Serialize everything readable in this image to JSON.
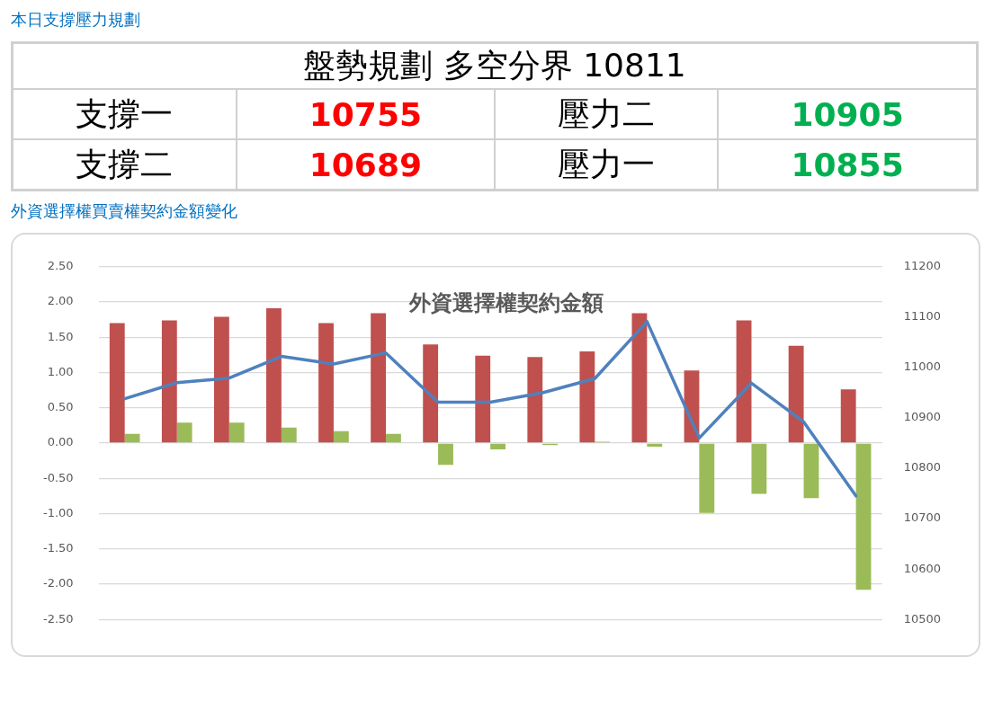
{
  "chart_data": [
    {
      "type": "other",
      "title": "本日支撐壓力規劃",
      "annotations": [
        "盤勢規劃 多空分界 10811",
        "支撐一",
        "10755",
        "壓力二",
        "10905",
        "支撐二",
        "10689",
        "壓力一",
        "10855"
      ],
      "colors": [
        "#000000",
        "#000000",
        "#ff0000",
        "#000000",
        "#00b050",
        "#000000",
        "#ff0000",
        "#000000",
        "#00b050"
      ]
    },
    {
      "type": "bar",
      "title": "外資選擇權買賣權契約金額變化",
      "subtitle": "外資選擇權契約金額",
      "categories": [
        null,
        null,
        null,
        null,
        null,
        null,
        null,
        null,
        null,
        null,
        null,
        null,
        null,
        null,
        null
      ],
      "series": [
        {
          "type": "bar",
          "color": "#c0504d",
          "values": [
            1.7,
            1.74,
            1.79,
            1.91,
            1.7,
            1.84,
            1.4,
            1.24,
            1.22,
            1.3,
            1.84,
            1.03,
            1.74,
            1.38,
            0.76
          ]
        },
        {
          "type": "bar",
          "color": "#9bbb59",
          "values": [
            0.13,
            0.29,
            0.29,
            0.22,
            0.17,
            0.13,
            -0.31,
            -0.09,
            -0.03,
            0.02,
            -0.05,
            -0.99,
            -0.72,
            -0.78,
            -2.08
          ]
        },
        {
          "type": "line",
          "axis": "y2",
          "color": "#4f81bd",
          "values": [
            10938,
            10970,
            10979,
            11022,
            11007,
            11029,
            10931,
            10931,
            10950,
            10978,
            11091,
            10860,
            10969,
            10892,
            10745
          ]
        }
      ],
      "ylim": [
        -2.5,
        2.5
      ],
      "yticks": [
        {
          "value": -2.5,
          "label": "-2.50"
        },
        {
          "value": -2,
          "label": "-2.00"
        },
        {
          "value": -1.5,
          "label": "-1.50"
        },
        {
          "value": -1,
          "label": "-1.00"
        },
        {
          "value": -0.5,
          "label": "-0.50"
        },
        {
          "value": 0,
          "label": "0.00"
        },
        {
          "value": 0.5,
          "label": "0.50"
        },
        {
          "value": 1,
          "label": "1.00"
        },
        {
          "value": 1.5,
          "label": "1.50"
        },
        {
          "value": 2,
          "label": "2.00"
        },
        {
          "value": 2.5,
          "label": "2.50"
        }
      ],
      "y2lim": [
        10500,
        11200
      ],
      "y2ticks": [
        10500,
        10600,
        10700,
        10800,
        10900,
        11000,
        11100,
        11200
      ],
      "grid": "y",
      "legend": false,
      "marker": "none",
      "line_style": "solid"
    }
  ]
}
